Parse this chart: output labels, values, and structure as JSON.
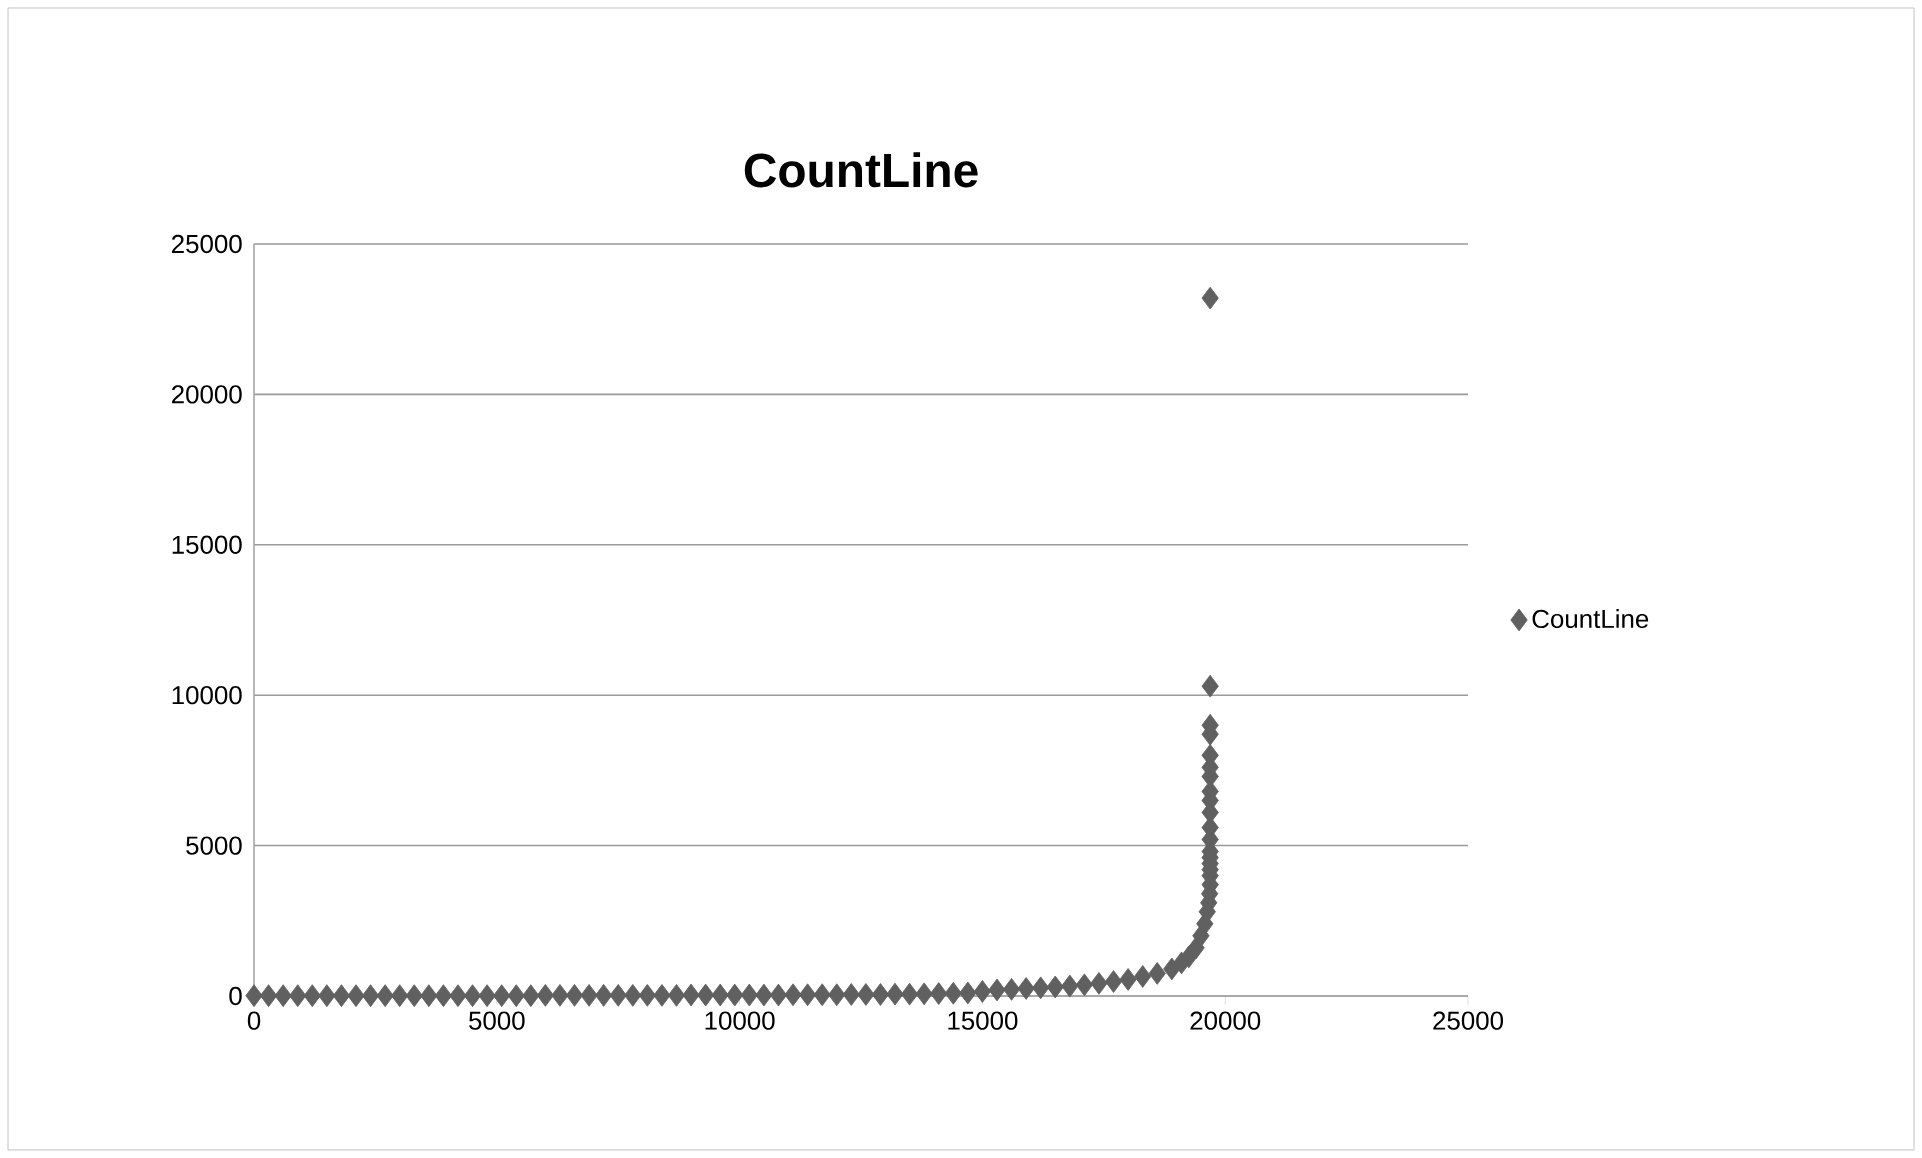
{
  "chart_data": {
    "type": "scatter",
    "title": "CountLine",
    "xlim": [
      0,
      25000
    ],
    "ylim": [
      0,
      25000
    ],
    "xticks": [
      0,
      5000,
      10000,
      15000,
      20000,
      25000
    ],
    "yticks": [
      0,
      5000,
      10000,
      15000,
      20000,
      25000
    ],
    "grid": "y",
    "legend": "right",
    "marker": "diamond",
    "series": [
      {
        "name": "CountLine",
        "color": "#606060",
        "x": [
          0,
          300,
          600,
          900,
          1200,
          1500,
          1800,
          2100,
          2400,
          2700,
          3000,
          3300,
          3600,
          3900,
          4200,
          4500,
          4800,
          5100,
          5400,
          5700,
          6000,
          6300,
          6600,
          6900,
          7200,
          7500,
          7800,
          8100,
          8400,
          8700,
          9000,
          9300,
          9600,
          9900,
          10200,
          10500,
          10800,
          11100,
          11400,
          11700,
          12000,
          12300,
          12600,
          12900,
          13200,
          13500,
          13800,
          14100,
          14400,
          14700,
          15000,
          15300,
          15600,
          15900,
          16200,
          16500,
          16800,
          17100,
          17400,
          17700,
          18000,
          18300,
          18600,
          18900,
          19100,
          19250,
          19400,
          19500,
          19580,
          19630,
          19660,
          19680,
          19690,
          19690,
          19690,
          19690,
          19690,
          19690,
          19690,
          19690,
          19690,
          19690,
          19690,
          19690,
          19690,
          19690,
          19690,
          19690,
          19690,
          19690
        ],
        "values": [
          10,
          10,
          10,
          10,
          10,
          10,
          10,
          10,
          10,
          10,
          10,
          10,
          10,
          10,
          10,
          10,
          10,
          10,
          10,
          10,
          20,
          20,
          20,
          20,
          20,
          20,
          20,
          20,
          20,
          20,
          30,
          30,
          30,
          30,
          30,
          30,
          30,
          40,
          40,
          40,
          40,
          50,
          50,
          50,
          60,
          60,
          70,
          80,
          90,
          100,
          150,
          200,
          220,
          250,
          270,
          300,
          330,
          370,
          420,
          480,
          550,
          650,
          750,
          900,
          1100,
          1300,
          1600,
          2000,
          2400,
          2800,
          3100,
          3400,
          3700,
          4000,
          4200,
          4400,
          4600,
          4800,
          5200,
          5600,
          6100,
          6500,
          6800,
          7300,
          7600,
          8000,
          8700,
          9000,
          10300,
          23200
        ]
      }
    ]
  }
}
